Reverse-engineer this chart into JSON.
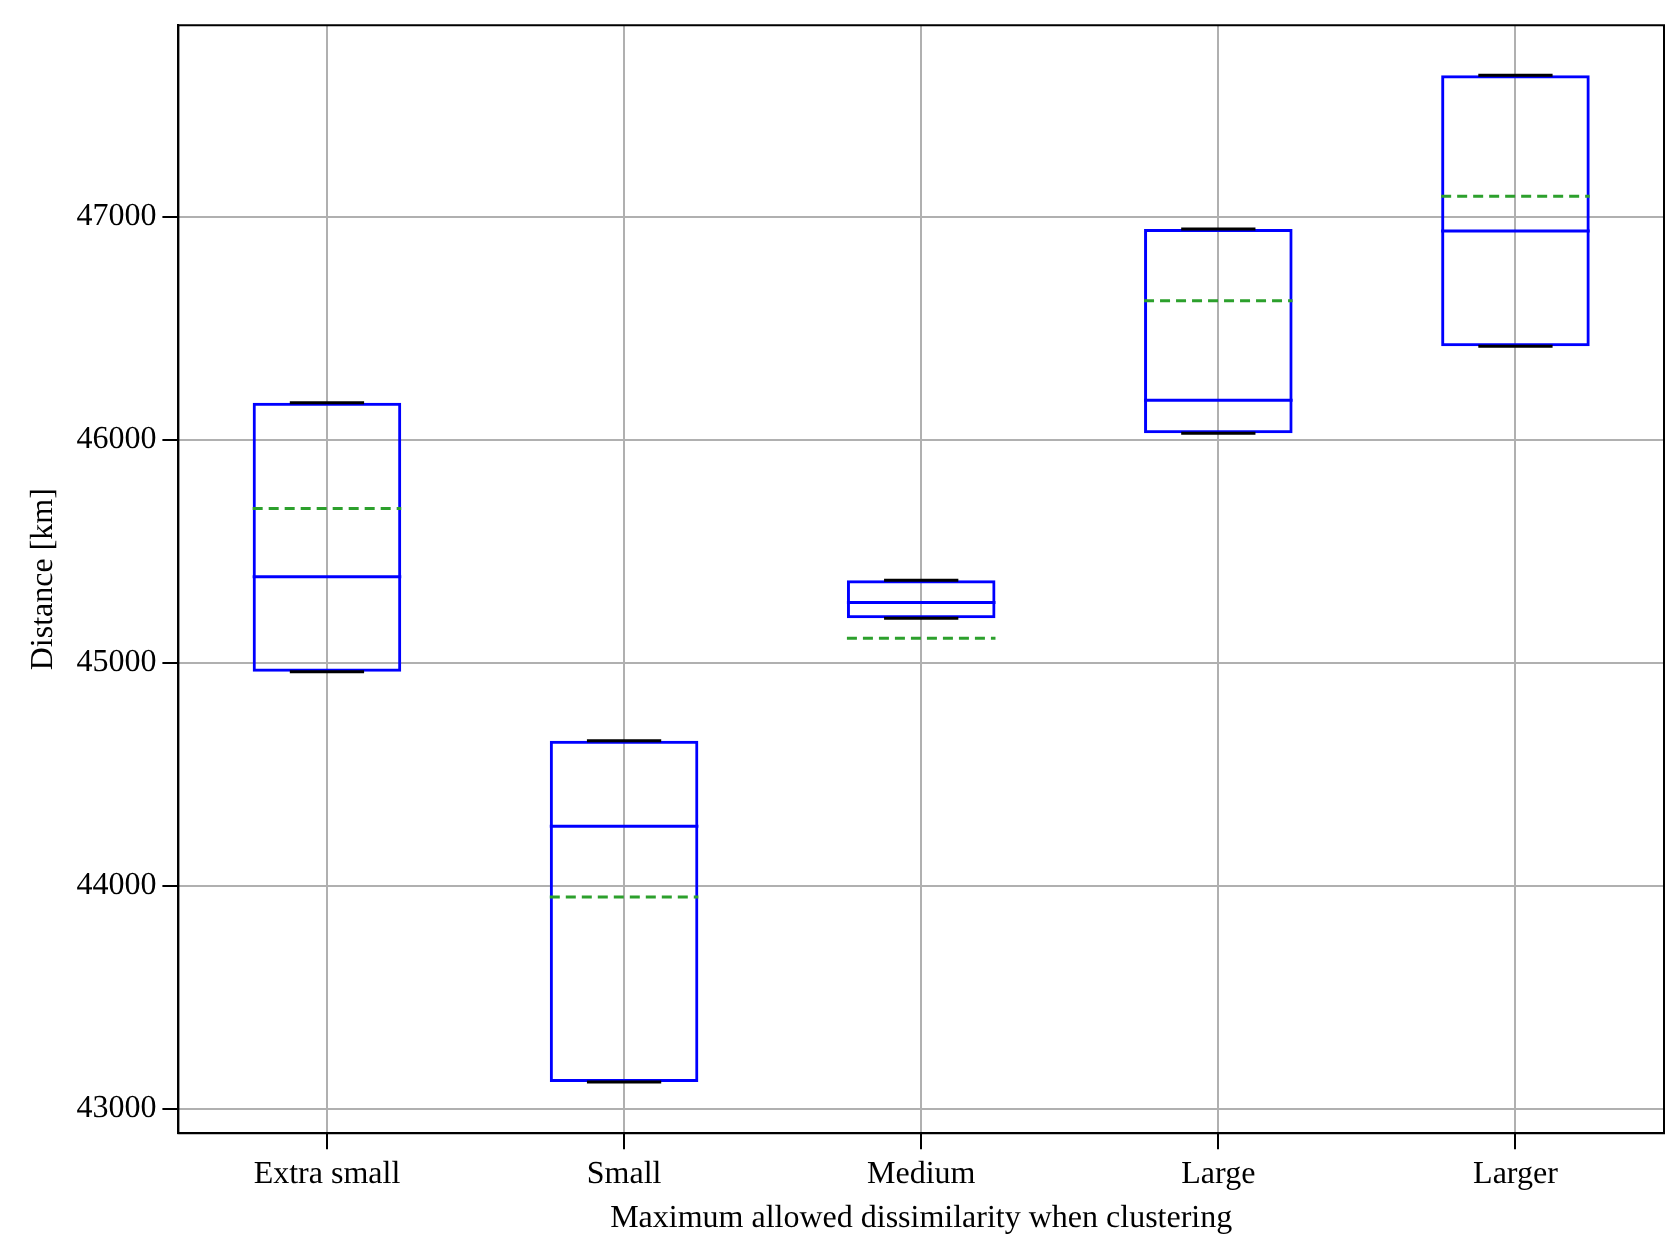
{
  "chart_data": {
    "type": "box",
    "xlabel": "Maximum allowed dissimilarity when clustering",
    "ylabel": "Distance [km]",
    "categories": [
      "Extra small",
      "Small",
      "Medium",
      "Large",
      "Larger"
    ],
    "series": [
      {
        "color": "#0000ff",
        "boxes": [
          {
            "low": 44960,
            "q1": 44960,
            "median": 45386,
            "q3": 46166,
            "high": 46166,
            "mean": 45692
          },
          {
            "low": 43120,
            "q1": 43120,
            "median": 44267,
            "q3": 44650,
            "high": 44650,
            "mean": 43950
          },
          {
            "low": 45200,
            "q1": 45200,
            "median": 45270,
            "q3": 45370,
            "high": 45370,
            "mean": 45110
          },
          {
            "low": 46030,
            "q1": 46030,
            "median": 46178,
            "q3": 46946,
            "high": 46946,
            "mean": 46624
          },
          {
            "low": 46420,
            "q1": 46420,
            "median": 46937,
            "q3": 47636,
            "high": 47636,
            "mean": 47093
          }
        ]
      }
    ],
    "ylim": [
      42890,
      47860
    ],
    "yticks": [
      43000,
      44000,
      45000,
      46000,
      47000
    ],
    "grid": true,
    "legend": false
  }
}
